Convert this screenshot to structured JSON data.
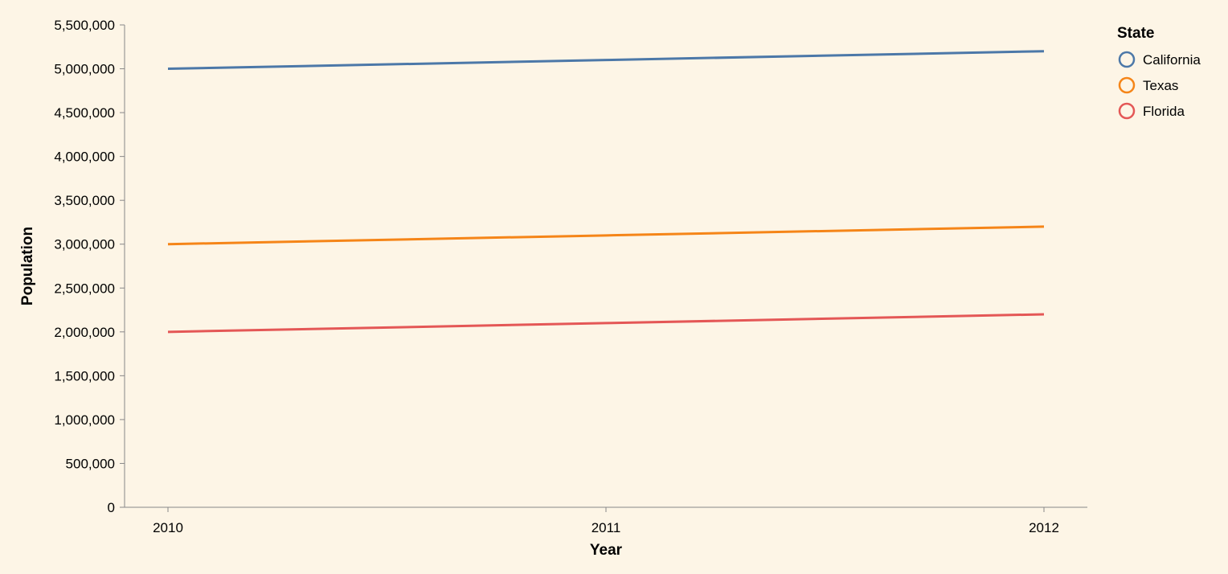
{
  "chart_data": {
    "type": "line",
    "title": "",
    "xlabel": "Year",
    "ylabel": "Population",
    "x": [
      2010,
      2011,
      2012
    ],
    "x_tick_labels": [
      "2010",
      "2011",
      "2012"
    ],
    "ylim": [
      0,
      5500000
    ],
    "y_ticks": [
      0,
      500000,
      1000000,
      1500000,
      2000000,
      2500000,
      3000000,
      3500000,
      4000000,
      4500000,
      5000000,
      5500000
    ],
    "grid": false,
    "legend": {
      "title": "State",
      "placement": "top-right"
    },
    "series": [
      {
        "name": "California",
        "color": "#4c78a8",
        "values": [
          5000000,
          5100000,
          5200000
        ]
      },
      {
        "name": "Texas",
        "color": "#f58518",
        "values": [
          3000000,
          3100000,
          3200000
        ]
      },
      {
        "name": "Florida",
        "color": "#e45756",
        "values": [
          2000000,
          2100000,
          2200000
        ]
      }
    ]
  }
}
